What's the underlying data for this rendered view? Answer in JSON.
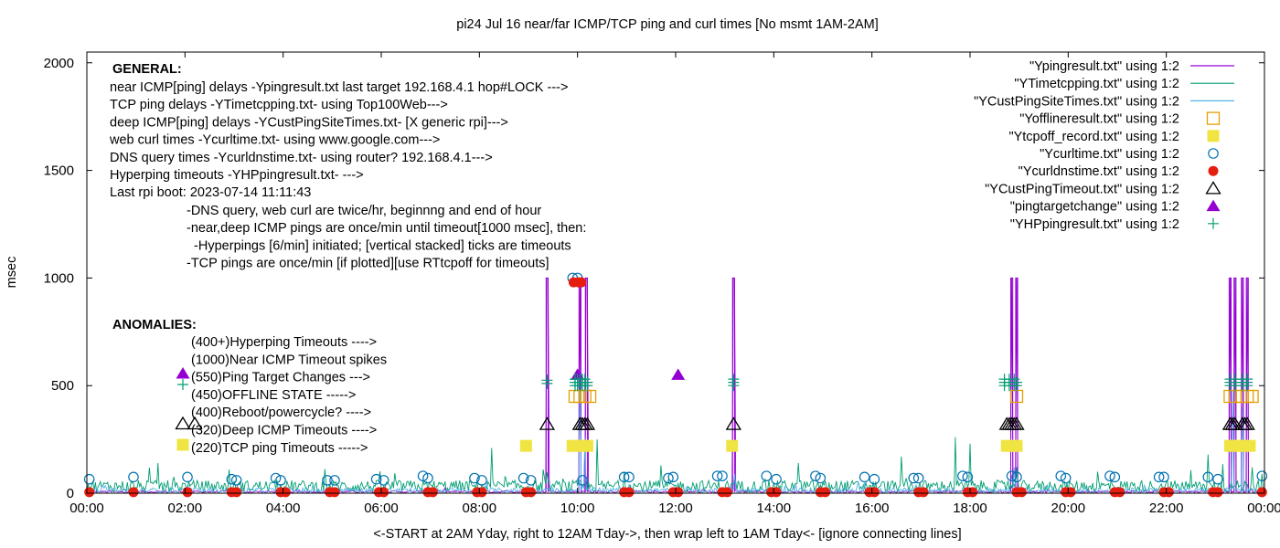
{
  "chart_data": {
    "type": "line",
    "title": "pi24 Jul 16  near/far ICMP/TCP ping and curl times [No msmt 1AM-2AM]",
    "xlabel": "<-START at 2AM Yday, right to 12AM Tday->, then wrap left to 1AM Tday<- [ignore connecting lines]",
    "ylabel": "msec",
    "xlim": [
      0,
      24
    ],
    "ylim": [
      0,
      2050
    ],
    "x_ticks": [
      {
        "value": 0,
        "label": "00:00"
      },
      {
        "value": 2,
        "label": "02:00"
      },
      {
        "value": 4,
        "label": "04:00"
      },
      {
        "value": 6,
        "label": "06:00"
      },
      {
        "value": 8,
        "label": "08:00"
      },
      {
        "value": 10,
        "label": "10:00"
      },
      {
        "value": 12,
        "label": "12:00"
      },
      {
        "value": 14,
        "label": "14:00"
      },
      {
        "value": 16,
        "label": "16:00"
      },
      {
        "value": 18,
        "label": "18:00"
      },
      {
        "value": 20,
        "label": "20:00"
      },
      {
        "value": 22,
        "label": "22:00"
      },
      {
        "value": 24,
        "label": "00:00"
      }
    ],
    "y_ticks": [
      {
        "value": 0,
        "label": "0"
      },
      {
        "value": 500,
        "label": "500"
      },
      {
        "value": 1000,
        "label": "1000"
      },
      {
        "value": 1500,
        "label": "1500"
      },
      {
        "value": 2000,
        "label": "2000"
      }
    ],
    "grid": false,
    "legend_position": "top-right",
    "series": [
      {
        "name": "\"Ypingresult.txt\" using 1:2",
        "style": "line",
        "color": "#9400d3",
        "spikes": [
          [
            9.38,
            1000
          ],
          [
            10.05,
            1000
          ],
          [
            10.18,
            1000
          ],
          [
            13.18,
            1000
          ],
          [
            18.85,
            1000
          ],
          [
            18.95,
            1000
          ],
          [
            23.3,
            1000
          ],
          [
            23.4,
            1000
          ],
          [
            23.55,
            1000
          ],
          [
            23.65,
            1000
          ]
        ],
        "baseline_range": [
          2,
          12
        ]
      },
      {
        "name": "\"YTimetcpping.txt\" using 1:2",
        "style": "line",
        "color": "#009e73",
        "baseline_range": [
          5,
          60
        ],
        "peaks": [
          [
            1.45,
            140
          ],
          [
            2.9,
            110
          ],
          [
            8.25,
            210
          ],
          [
            9.3,
            110
          ],
          [
            10.4,
            250
          ],
          [
            11.7,
            130
          ],
          [
            14.5,
            140
          ],
          [
            16.6,
            170
          ],
          [
            17.7,
            260
          ],
          [
            18.0,
            230
          ],
          [
            18.95,
            120
          ],
          [
            20.6,
            100
          ],
          [
            22.85,
            180
          ],
          [
            23.15,
            135
          ],
          [
            23.75,
            120
          ]
        ]
      },
      {
        "name": "\"YCustPingSiteTimes.txt\" using 1:2",
        "style": "line",
        "color": "#56b4e9",
        "baseline_range": [
          2,
          25
        ],
        "peaks": [
          [
            10.05,
            550
          ],
          [
            10.15,
            260
          ],
          [
            13.2,
            90
          ],
          [
            18.9,
            120
          ],
          [
            23.35,
            480
          ],
          [
            23.55,
            400
          ]
        ]
      },
      {
        "name": "\"Yofflineresult.txt\" using 1:2",
        "style": "open-square",
        "color": "#e69f00",
        "points": [
          [
            9.95,
            450
          ],
          [
            10.05,
            450
          ],
          [
            10.15,
            450
          ],
          [
            10.25,
            450
          ],
          [
            18.95,
            450
          ],
          [
            23.3,
            450
          ],
          [
            23.4,
            450
          ],
          [
            23.55,
            450
          ],
          [
            23.65,
            450
          ],
          [
            23.75,
            450
          ]
        ]
      },
      {
        "name": "\"Ytcpoff_record.txt\" using 1:2",
        "style": "filled-square",
        "color": "#f0e442",
        "points": [
          [
            8.95,
            220
          ],
          [
            9.9,
            220
          ],
          [
            10.0,
            220
          ],
          [
            10.1,
            220
          ],
          [
            10.2,
            220
          ],
          [
            13.15,
            220
          ],
          [
            18.75,
            220
          ],
          [
            18.85,
            220
          ],
          [
            18.95,
            220
          ],
          [
            23.3,
            220
          ],
          [
            23.4,
            220
          ],
          [
            23.5,
            220
          ],
          [
            23.6,
            220
          ],
          [
            23.7,
            220
          ]
        ]
      },
      {
        "name": "\"Ycurltime.txt\" using 1:2",
        "style": "open-circle",
        "color": "#0072b2",
        "points": [
          [
            0.05,
            65
          ],
          [
            0.95,
            75
          ],
          [
            2.05,
            75
          ],
          [
            2.95,
            65
          ],
          [
            3.05,
            60
          ],
          [
            3.85,
            70
          ],
          [
            3.95,
            60
          ],
          [
            4.9,
            60
          ],
          [
            5.05,
            60
          ],
          [
            5.9,
            65
          ],
          [
            6.05,
            60
          ],
          [
            6.85,
            80
          ],
          [
            6.95,
            70
          ],
          [
            7.9,
            70
          ],
          [
            8.05,
            60
          ],
          [
            8.9,
            70
          ],
          [
            9.05,
            60
          ],
          [
            9.9,
            1000
          ],
          [
            10.0,
            1000
          ],
          [
            10.1,
            60
          ],
          [
            10.95,
            75
          ],
          [
            11.05,
            75
          ],
          [
            11.85,
            70
          ],
          [
            11.95,
            75
          ],
          [
            12.85,
            80
          ],
          [
            12.95,
            80
          ],
          [
            13.85,
            80
          ],
          [
            14.05,
            65
          ],
          [
            14.85,
            80
          ],
          [
            14.95,
            70
          ],
          [
            15.85,
            75
          ],
          [
            16.05,
            65
          ],
          [
            16.85,
            70
          ],
          [
            16.95,
            70
          ],
          [
            17.85,
            80
          ],
          [
            17.95,
            75
          ],
          [
            18.85,
            80
          ],
          [
            18.95,
            75
          ],
          [
            19.85,
            80
          ],
          [
            19.95,
            70
          ],
          [
            20.85,
            80
          ],
          [
            20.95,
            75
          ],
          [
            21.85,
            75
          ],
          [
            21.95,
            75
          ],
          [
            22.85,
            75
          ],
          [
            23.05,
            65
          ],
          [
            23.95,
            80
          ]
        ]
      },
      {
        "name": "\"Ycurldnstime.txt\" using 1:2",
        "style": "filled-circle",
        "color": "#e51e10",
        "points": [
          [
            0.05,
            5
          ],
          [
            0.95,
            5
          ],
          [
            2.05,
            5
          ],
          [
            2.95,
            5
          ],
          [
            3.05,
            5
          ],
          [
            3.95,
            5
          ],
          [
            4.05,
            5
          ],
          [
            4.95,
            5
          ],
          [
            5.05,
            5
          ],
          [
            5.95,
            5
          ],
          [
            6.05,
            5
          ],
          [
            6.95,
            5
          ],
          [
            7.05,
            5
          ],
          [
            7.95,
            5
          ],
          [
            8.05,
            5
          ],
          [
            8.95,
            5
          ],
          [
            9.05,
            5
          ],
          [
            9.92,
            980
          ],
          [
            10.02,
            980
          ],
          [
            10.08,
            980
          ],
          [
            10.95,
            5
          ],
          [
            11.05,
            5
          ],
          [
            11.95,
            5
          ],
          [
            12.05,
            5
          ],
          [
            12.95,
            5
          ],
          [
            13.05,
            5
          ],
          [
            13.95,
            5
          ],
          [
            14.05,
            5
          ],
          [
            14.95,
            5
          ],
          [
            15.05,
            5
          ],
          [
            15.95,
            5
          ],
          [
            16.05,
            5
          ],
          [
            16.95,
            5
          ],
          [
            17.05,
            5
          ],
          [
            17.95,
            5
          ],
          [
            18.05,
            5
          ],
          [
            18.95,
            5
          ],
          [
            19.05,
            5
          ],
          [
            19.95,
            5
          ],
          [
            20.05,
            5
          ],
          [
            20.95,
            5
          ],
          [
            21.05,
            5
          ],
          [
            21.95,
            5
          ],
          [
            22.05,
            5
          ],
          [
            22.95,
            5
          ],
          [
            23.05,
            5
          ],
          [
            23.95,
            5
          ]
        ]
      },
      {
        "name": "\"YCustPingTimeout.txt\" using 1:2",
        "style": "open-triangle",
        "color": "#000000",
        "points": [
          [
            9.38,
            320
          ],
          [
            10.05,
            320
          ],
          [
            10.1,
            320
          ],
          [
            10.15,
            320
          ],
          [
            10.2,
            320
          ],
          [
            13.18,
            320
          ],
          [
            18.75,
            320
          ],
          [
            18.8,
            320
          ],
          [
            18.85,
            320
          ],
          [
            18.9,
            320
          ],
          [
            18.95,
            320
          ],
          [
            23.3,
            320
          ],
          [
            23.35,
            320
          ],
          [
            23.4,
            320
          ],
          [
            23.55,
            320
          ],
          [
            23.6,
            320
          ],
          [
            23.65,
            320
          ]
        ]
      },
      {
        "name": "\"pingtargetchange\" using 1:2",
        "style": "filled-triangle",
        "color": "#9400d3",
        "points": [
          [
            10.0,
            550
          ],
          [
            12.05,
            550
          ]
        ]
      },
      {
        "name": "\"YHPpingresult.txt\" using 1:2",
        "style": "plus",
        "color": "#009e73",
        "points": [
          [
            9.38,
            510
          ],
          [
            9.38,
            525
          ],
          [
            9.95,
            500
          ],
          [
            9.95,
            515
          ],
          [
            9.95,
            530
          ],
          [
            10.0,
            500
          ],
          [
            10.0,
            515
          ],
          [
            10.0,
            530
          ],
          [
            10.05,
            500
          ],
          [
            10.05,
            515
          ],
          [
            10.05,
            530
          ],
          [
            10.1,
            500
          ],
          [
            10.1,
            515
          ],
          [
            10.1,
            530
          ],
          [
            10.15,
            500
          ],
          [
            10.15,
            515
          ],
          [
            10.15,
            530
          ],
          [
            10.2,
            500
          ],
          [
            10.2,
            515
          ],
          [
            13.18,
            500
          ],
          [
            13.18,
            515
          ],
          [
            13.18,
            530
          ],
          [
            18.7,
            500
          ],
          [
            18.7,
            515
          ],
          [
            18.7,
            530
          ],
          [
            18.8,
            500
          ],
          [
            18.8,
            515
          ],
          [
            18.8,
            530
          ],
          [
            18.9,
            500
          ],
          [
            18.9,
            515
          ],
          [
            18.9,
            530
          ],
          [
            18.95,
            500
          ],
          [
            18.95,
            515
          ],
          [
            23.3,
            500
          ],
          [
            23.3,
            515
          ],
          [
            23.3,
            530
          ],
          [
            23.4,
            500
          ],
          [
            23.4,
            515
          ],
          [
            23.4,
            530
          ],
          [
            23.55,
            500
          ],
          [
            23.55,
            515
          ],
          [
            23.55,
            530
          ],
          [
            23.65,
            500
          ],
          [
            23.65,
            515
          ],
          [
            23.65,
            530
          ]
        ]
      }
    ],
    "anomaly_key_markers": [
      {
        "style": "plus",
        "color": "#009e73",
        "value": 500
      },
      {
        "style": "filled-triangle",
        "color": "#9400d3",
        "value": 550
      },
      {
        "style": "open-triangle",
        "color": "#000000",
        "value": 320
      },
      {
        "style": "filled-square",
        "color": "#f0e442",
        "value": 220
      }
    ]
  },
  "annotations": {
    "general_header": "GENERAL:",
    "general_lines": [
      "near ICMP[ping] delays -Ypingresult.txt last target 192.168.4.1 hop#LOCK --->",
      "TCP ping delays -YTimetcpping.txt- using Top100Web--->",
      "deep ICMP[ping] delays -YCustPingSiteTimes.txt- [X generic rpi]--->",
      "web curl times -Ycurltime.txt- using www.google.com--->",
      "DNS query times -Ycurldnstime.txt- using router? 192.168.4.1--->",
      "Hyperping timeouts -YHPpingresult.txt- --->",
      "Last rpi boot: 2023-07-14 11:11:43"
    ],
    "note_lines": [
      "-DNS query, web curl are twice/hr, beginnng and end of hour",
      "-near,deep ICMP pings are once/min until timeout[1000 msec], then:",
      "  -Hyperpings [6/min] initiated; [vertical stacked] ticks are timeouts",
      "-TCP pings are once/min [if plotted][use RTtcpoff for timeouts]"
    ],
    "anomalies_header": "ANOMALIES:",
    "anomaly_lines": [
      "(400+)Hyperping Timeouts ---->",
      "(1000)Near ICMP Timeout spikes",
      "(550)Ping Target Changes --->",
      "(450)OFFLINE STATE ----->",
      "(400)Reboot/powercycle? ---->",
      "(320)Deep ICMP Timeouts ---->",
      "(220)TCP ping Timeouts ----->"
    ]
  }
}
